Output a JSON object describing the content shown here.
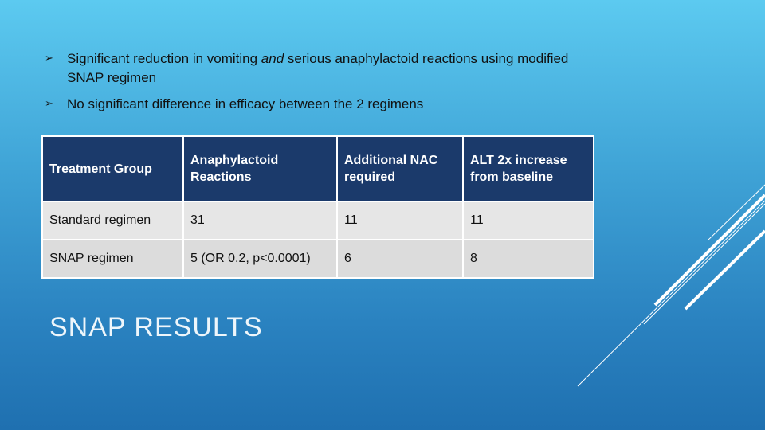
{
  "bullets": [
    {
      "parts": [
        "Significant reduction in vomiting ",
        "and",
        " serious anaphylactoid reactions using modified SNAP regimen"
      ]
    },
    {
      "parts": [
        "No significant difference in efficacy between the 2 regimens"
      ]
    }
  ],
  "table": {
    "header": [
      "Treatment Group",
      "Anaphylactoid Reactions",
      "Additional NAC required",
      "ALT 2x increase from baseline"
    ],
    "rows": [
      [
        "Standard regimen",
        "31",
        "11",
        "11"
      ],
      [
        "SNAP regimen",
        "5 (OR 0.2, p<0.0001)",
        "6",
        "8"
      ]
    ]
  },
  "title": "SNAP RESULTS"
}
